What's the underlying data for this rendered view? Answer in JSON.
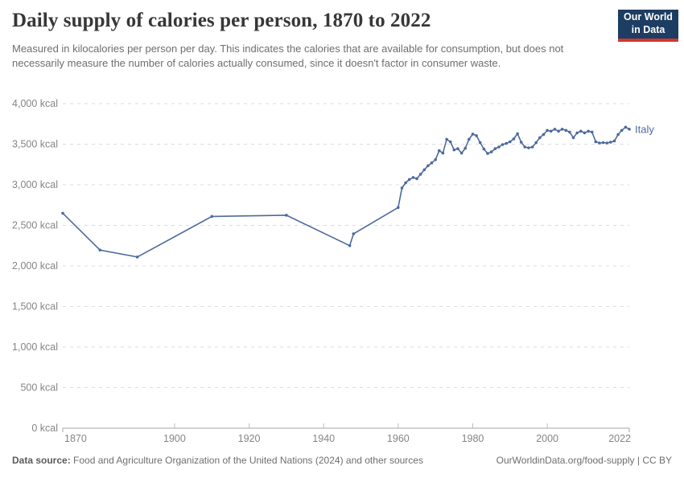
{
  "header": {
    "title": "Daily supply of calories per person, 1870 to 2022",
    "subtitle": "Measured in kilocalories per person per day. This indicates the calories that are available for consumption, but does not necessarily measure the number of calories actually consumed, since it doesn't factor in consumer waste.",
    "logo": {
      "line1": "Our World",
      "line2": "in Data",
      "bg_color": "#1d3d63",
      "accent_color": "#d0372f"
    }
  },
  "footer": {
    "source_label": "Data source:",
    "source_text": " Food and Agriculture Organization of the United Nations (2024) and other sources",
    "link_text": "OurWorldinData.org/food-supply",
    "license_suffix": " | CC BY"
  },
  "chart_data": {
    "type": "line",
    "title": "Daily supply of calories per person, 1870 to 2022",
    "xlabel": "",
    "ylabel": "",
    "unit": "kcal",
    "grid": true,
    "legend_position": "end-of-line",
    "line_color": "#4c6a9c",
    "grid_color": "#dcdcdc",
    "axis_color": "#a6a6a6",
    "tick_label_color": "#858585",
    "x_range": [
      1870,
      2022
    ],
    "y_range": [
      0,
      4000
    ],
    "x_ticks": [
      1870,
      1900,
      1920,
      1940,
      1960,
      1980,
      2000,
      2022
    ],
    "y_ticks": [
      {
        "value": 0,
        "label": "0 kcal"
      },
      {
        "value": 500,
        "label": "500 kcal"
      },
      {
        "value": 1000,
        "label": "1,000 kcal"
      },
      {
        "value": 1500,
        "label": "1,500 kcal"
      },
      {
        "value": 2000,
        "label": "2,000 kcal"
      },
      {
        "value": 2500,
        "label": "2,500 kcal"
      },
      {
        "value": 3000,
        "label": "3,000 kcal"
      },
      {
        "value": 3500,
        "label": "3,500 kcal"
      },
      {
        "value": 4000,
        "label": "4,000 kcal"
      }
    ],
    "series": [
      {
        "name": "Italy",
        "points": [
          [
            1870,
            2650
          ],
          [
            1880,
            2195
          ],
          [
            1890,
            2110
          ],
          [
            1910,
            2610
          ],
          [
            1930,
            2625
          ],
          [
            1947,
            2250
          ],
          [
            1948,
            2395
          ],
          [
            1960,
            2720
          ],
          [
            1961,
            2960
          ],
          [
            1962,
            3025
          ],
          [
            1963,
            3065
          ],
          [
            1964,
            3090
          ],
          [
            1965,
            3075
          ],
          [
            1966,
            3130
          ],
          [
            1967,
            3185
          ],
          [
            1968,
            3235
          ],
          [
            1969,
            3270
          ],
          [
            1970,
            3310
          ],
          [
            1971,
            3420
          ],
          [
            1972,
            3390
          ],
          [
            1973,
            3560
          ],
          [
            1974,
            3530
          ],
          [
            1975,
            3430
          ],
          [
            1976,
            3445
          ],
          [
            1977,
            3390
          ],
          [
            1978,
            3450
          ],
          [
            1979,
            3560
          ],
          [
            1980,
            3625
          ],
          [
            1981,
            3605
          ],
          [
            1982,
            3520
          ],
          [
            1983,
            3440
          ],
          [
            1984,
            3385
          ],
          [
            1985,
            3405
          ],
          [
            1986,
            3445
          ],
          [
            1987,
            3465
          ],
          [
            1988,
            3495
          ],
          [
            1989,
            3510
          ],
          [
            1990,
            3530
          ],
          [
            1991,
            3565
          ],
          [
            1992,
            3630
          ],
          [
            1993,
            3525
          ],
          [
            1994,
            3465
          ],
          [
            1995,
            3455
          ],
          [
            1996,
            3465
          ],
          [
            1997,
            3520
          ],
          [
            1998,
            3580
          ],
          [
            1999,
            3620
          ],
          [
            2000,
            3670
          ],
          [
            2001,
            3660
          ],
          [
            2002,
            3685
          ],
          [
            2003,
            3660
          ],
          [
            2004,
            3685
          ],
          [
            2005,
            3670
          ],
          [
            2006,
            3650
          ],
          [
            2007,
            3580
          ],
          [
            2008,
            3640
          ],
          [
            2009,
            3660
          ],
          [
            2010,
            3640
          ],
          [
            2011,
            3660
          ],
          [
            2012,
            3650
          ],
          [
            2013,
            3530
          ],
          [
            2014,
            3515
          ],
          [
            2015,
            3520
          ],
          [
            2016,
            3515
          ],
          [
            2017,
            3525
          ],
          [
            2018,
            3540
          ],
          [
            2019,
            3620
          ],
          [
            2020,
            3670
          ],
          [
            2021,
            3710
          ],
          [
            2022,
            3685
          ]
        ]
      }
    ]
  }
}
